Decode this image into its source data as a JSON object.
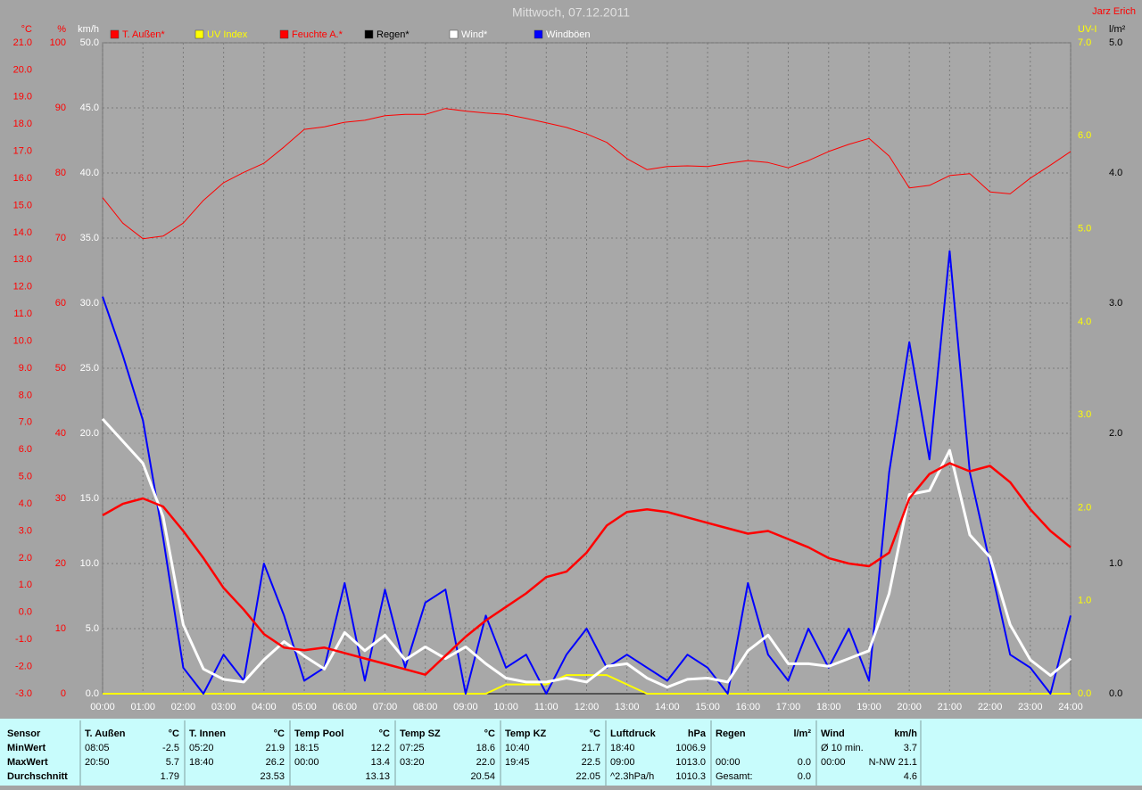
{
  "chart_data": {
    "type": "line",
    "title": "Mittwoch, 07.12.2011",
    "author": "Jarz Erich",
    "grid": true,
    "x": [
      0,
      0.5,
      1,
      1.5,
      2,
      2.5,
      3,
      3.5,
      4,
      4.5,
      5,
      5.5,
      6,
      6.5,
      7,
      7.5,
      8,
      8.5,
      9,
      9.5,
      10,
      10.5,
      11,
      11.5,
      12,
      12.5,
      13,
      13.5,
      14,
      14.5,
      15,
      15.5,
      16,
      16.5,
      17,
      17.5,
      18,
      18.5,
      19,
      19.5,
      20,
      20.5,
      21,
      21.5,
      22,
      22.5,
      23,
      23.5,
      24
    ],
    "xlim": [
      0,
      24
    ],
    "xticks": [
      {
        "value": 0,
        "label": "00:00"
      },
      {
        "value": 1,
        "label": "01:00"
      },
      {
        "value": 2,
        "label": "02:00"
      },
      {
        "value": 3,
        "label": "03:00"
      },
      {
        "value": 4,
        "label": "04:00"
      },
      {
        "value": 5,
        "label": "05:00"
      },
      {
        "value": 6,
        "label": "06:00"
      },
      {
        "value": 7,
        "label": "07:00"
      },
      {
        "value": 8,
        "label": "08:00"
      },
      {
        "value": 9,
        "label": "09:00"
      },
      {
        "value": 10,
        "label": "10:00"
      },
      {
        "value": 11,
        "label": "11:00"
      },
      {
        "value": 12,
        "label": "12:00"
      },
      {
        "value": 13,
        "label": "13:00"
      },
      {
        "value": 14,
        "label": "14:00"
      },
      {
        "value": 15,
        "label": "15:00"
      },
      {
        "value": 16,
        "label": "16:00"
      },
      {
        "value": 17,
        "label": "17:00"
      },
      {
        "value": 18,
        "label": "18:00"
      },
      {
        "value": 19,
        "label": "19:00"
      },
      {
        "value": 20,
        "label": "20:00"
      },
      {
        "value": 21,
        "label": "21:00"
      },
      {
        "value": 22,
        "label": "22:00"
      },
      {
        "value": 23,
        "label": "23:00"
      },
      {
        "value": 24,
        "label": "24:00"
      }
    ],
    "axes": [
      {
        "label": "°C",
        "color": "#ff0000",
        "side": "left",
        "lim": [
          -3,
          21
        ],
        "ticks": [
          {
            "value": -3,
            "label": "-3.0"
          },
          {
            "value": -2,
            "label": "-2.0"
          },
          {
            "value": -1,
            "label": "-1.0"
          },
          {
            "value": 0,
            "label": "0.0"
          },
          {
            "value": 1,
            "label": "1.0"
          },
          {
            "value": 2,
            "label": "2.0"
          },
          {
            "value": 3,
            "label": "3.0"
          },
          {
            "value": 4,
            "label": "4.0"
          },
          {
            "value": 5,
            "label": "5.0"
          },
          {
            "value": 6,
            "label": "6.0"
          },
          {
            "value": 7,
            "label": "7.0"
          },
          {
            "value": 8,
            "label": "8.0"
          },
          {
            "value": 9,
            "label": "9.0"
          },
          {
            "value": 10,
            "label": "10.0"
          },
          {
            "value": 11,
            "label": "11.0"
          },
          {
            "value": 12,
            "label": "12.0"
          },
          {
            "value": 13,
            "label": "13.0"
          },
          {
            "value": 14,
            "label": "14.0"
          },
          {
            "value": 15,
            "label": "15.0"
          },
          {
            "value": 16,
            "label": "16.0"
          },
          {
            "value": 17,
            "label": "17.0"
          },
          {
            "value": 18,
            "label": "18.0"
          },
          {
            "value": 19,
            "label": "19.0"
          },
          {
            "value": 20,
            "label": "20.0"
          },
          {
            "value": 21,
            "label": "21.0"
          }
        ]
      },
      {
        "label": "%",
        "color": "#ff0000",
        "side": "left",
        "lim": [
          0,
          100
        ],
        "ticks": [
          0,
          10,
          20,
          30,
          40,
          50,
          60,
          70,
          80,
          90,
          100
        ]
      },
      {
        "label": "km/h",
        "color": "#ffffff",
        "side": "left",
        "lim": [
          0,
          50
        ],
        "grid": true,
        "ticks": [
          {
            "value": 0,
            "label": "0.0"
          },
          {
            "value": 5,
            "label": "5.0"
          },
          {
            "value": 10,
            "label": "10.0"
          },
          {
            "value": 15,
            "label": "15.0"
          },
          {
            "value": 20,
            "label": "20.0"
          },
          {
            "value": 25,
            "label": "25.0"
          },
          {
            "value": 30,
            "label": "30.0"
          },
          {
            "value": 35,
            "label": "35.0"
          },
          {
            "value": 40,
            "label": "40.0"
          },
          {
            "value": 45,
            "label": "45.0"
          },
          {
            "value": 50,
            "label": "50.0"
          }
        ]
      },
      {
        "label": "UV-I",
        "color": "#ffff00",
        "side": "right",
        "lim": [
          0,
          7
        ],
        "ticks": [
          {
            "value": 0,
            "label": "0.0"
          },
          {
            "value": 1,
            "label": "1.0"
          },
          {
            "value": 2,
            "label": "2.0"
          },
          {
            "value": 3,
            "label": "3.0"
          },
          {
            "value": 4,
            "label": "4.0"
          },
          {
            "value": 5,
            "label": "5.0"
          },
          {
            "value": 6,
            "label": "6.0"
          },
          {
            "value": 7,
            "label": "7.0"
          }
        ]
      },
      {
        "label": "l/m²",
        "color": "#000000",
        "side": "right",
        "lim": [
          0,
          5
        ],
        "ticks": [
          {
            "value": 0,
            "label": "0.0"
          },
          {
            "value": 1,
            "label": "1.0"
          },
          {
            "value": 2,
            "label": "2.0"
          },
          {
            "value": 3,
            "label": "3.0"
          },
          {
            "value": 4,
            "label": "4.0"
          },
          {
            "value": 5,
            "label": "5.0"
          }
        ]
      }
    ],
    "series": [
      {
        "name": "T. Außen*",
        "color": "#ff0000",
        "label_color": "#ff0000",
        "axis": 0,
        "width": 2.5,
        "values": [
          3.58,
          4.0,
          4.2,
          3.9,
          3.0,
          2.0,
          0.9,
          0.1,
          -0.8,
          -1.3,
          -1.4,
          -1.3,
          -1.5,
          -1.7,
          -1.9,
          -2.1,
          -2.3,
          -1.6,
          -0.9,
          -0.3,
          0.2,
          0.7,
          1.3,
          1.5,
          2.2,
          3.2,
          3.7,
          3.8,
          3.7,
          3.5,
          3.3,
          3.1,
          2.9,
          3.0,
          2.7,
          2.4,
          2.0,
          1.8,
          1.7,
          2.2,
          4.2,
          5.1,
          5.5,
          5.2,
          5.4,
          4.8,
          3.8,
          3.0,
          2.4
        ]
      },
      {
        "name": "UV Index",
        "color": "#ffff00",
        "label_color": "#ffff00",
        "axis": 3,
        "width": 2,
        "values": [
          0,
          0,
          0,
          0,
          0,
          0,
          0,
          0,
          0,
          0,
          0,
          0,
          0,
          0,
          0,
          0,
          0,
          0,
          0,
          0,
          0.1,
          0.1,
          0.1,
          0.2,
          0.2,
          0.2,
          0.1,
          0,
          0,
          0,
          0,
          0,
          0,
          0,
          0,
          0,
          0,
          0,
          0,
          0,
          0,
          0,
          0,
          0,
          0,
          0,
          0,
          0,
          0
        ]
      },
      {
        "name": "Feuchte A.*",
        "color": "#ff0000",
        "label_color": "#ff0000",
        "axis": 1,
        "width": 1,
        "values": [
          76.2,
          72.3,
          69.9,
          70.3,
          72.3,
          75.8,
          78.5,
          80.1,
          81.5,
          84,
          86.7,
          87.1,
          87.8,
          88.1,
          88.8,
          89,
          89,
          89.9,
          89.5,
          89.2,
          89,
          88.4,
          87.7,
          87,
          86,
          84.7,
          82.2,
          80.5,
          81,
          81.1,
          81,
          81.5,
          81.9,
          81.6,
          80.8,
          81.9,
          83.3,
          84.4,
          85.3,
          82.6,
          77.7,
          78.1,
          79.6,
          79.9,
          77.1,
          76.8,
          79.2,
          81.2,
          83.3
        ]
      },
      {
        "name": "Regen*",
        "color": "#000000",
        "label_color": "#000000",
        "axis": 4,
        "width": 1,
        "values": [
          0,
          0,
          0,
          0,
          0,
          0,
          0,
          0,
          0,
          0,
          0,
          0,
          0,
          0,
          0,
          0,
          0,
          0,
          0,
          0,
          0,
          0,
          0,
          0,
          0,
          0,
          0,
          0,
          0,
          0,
          0,
          0,
          0,
          0,
          0,
          0,
          0,
          0,
          0,
          0,
          0,
          0,
          0,
          0,
          0,
          0,
          0,
          0,
          0
        ]
      },
      {
        "name": "Windböen",
        "color": "#0000ff",
        "label_color": "#ffffff",
        "axis": 2,
        "width": 2,
        "values": [
          30.5,
          26,
          21,
          12,
          2,
          0,
          3,
          1,
          10,
          6,
          1,
          2,
          8.5,
          1,
          8,
          2,
          7,
          8,
          0,
          6,
          2,
          3,
          0,
          3,
          5,
          2,
          3,
          2,
          1,
          3,
          2,
          0,
          8.5,
          3,
          1,
          5,
          2,
          5,
          1,
          17,
          27,
          18,
          34,
          17,
          10,
          3,
          2,
          0,
          6
        ]
      },
      {
        "name": "Wind*",
        "color": "#ffffff",
        "label_color": "#ffffff",
        "axis": 2,
        "width": 3,
        "values": [
          21.1,
          19.4,
          17.7,
          13.6,
          5.3,
          1.9,
          1.1,
          0.9,
          2.6,
          4.0,
          2.9,
          1.9,
          4.7,
          3.3,
          4.5,
          2.6,
          3.6,
          2.7,
          3.6,
          2.3,
          1.2,
          0.9,
          0.9,
          1.2,
          0.9,
          2.1,
          2.3,
          1.2,
          0.5,
          1.1,
          1.2,
          0.9,
          3.3,
          4.5,
          2.3,
          2.3,
          2.1,
          2.7,
          3.3,
          7.7,
          15.3,
          15.6,
          18.7,
          12.2,
          10.5,
          5.3,
          2.6,
          1.4,
          2.7
        ]
      }
    ],
    "legend_order": [
      0,
      1,
      2,
      3,
      5,
      4
    ],
    "table": {
      "row_labels": [
        "Sensor",
        "MinWert",
        "MaxWert",
        "Durchschnitt"
      ],
      "groups": [
        {
          "name": "T. Außen",
          "unit": "°C",
          "rows": [
            [
              "08:05",
              "-2.5"
            ],
            [
              "20:50",
              "5.7"
            ],
            [
              null,
              "1.79"
            ]
          ]
        },
        {
          "name": "T. Innen",
          "unit": "°C",
          "rows": [
            [
              "05:20",
              "21.9"
            ],
            [
              "18:40",
              "26.2"
            ],
            [
              null,
              "23.53"
            ]
          ]
        },
        {
          "name": "Temp Pool",
          "unit": "°C",
          "rows": [
            [
              "18:15",
              "12.2"
            ],
            [
              "00:00",
              "13.4"
            ],
            [
              null,
              "13.13"
            ]
          ]
        },
        {
          "name": "Temp SZ",
          "unit": "°C",
          "rows": [
            [
              "07:25",
              "18.6"
            ],
            [
              "03:20",
              "22.0"
            ],
            [
              null,
              "20.54"
            ]
          ]
        },
        {
          "name": "Temp KZ",
          "unit": "°C",
          "rows": [
            [
              "10:40",
              "21.7"
            ],
            [
              "19:45",
              "22.5"
            ],
            [
              null,
              "22.05"
            ]
          ]
        },
        {
          "name": "Luftdruck",
          "unit": "hPa",
          "rows": [
            [
              "18:40",
              "1006.9"
            ],
            [
              "09:00",
              "1013.0"
            ],
            [
              "^2.3hPa/h",
              "1010.3"
            ]
          ]
        },
        {
          "name": "Regen",
          "unit": "l/m²",
          "rows": [
            [
              null,
              null
            ],
            [
              "00:00",
              "0.0"
            ],
            [
              "Gesamt:",
              "0.0"
            ]
          ]
        },
        {
          "name": "Wind",
          "unit": "km/h",
          "rows": [
            [
              "Ø 10 min.",
              "3.7"
            ],
            [
              "00:00",
              "N-NW 21.1"
            ],
            [
              null,
              "4.6"
            ]
          ]
        }
      ]
    }
  }
}
